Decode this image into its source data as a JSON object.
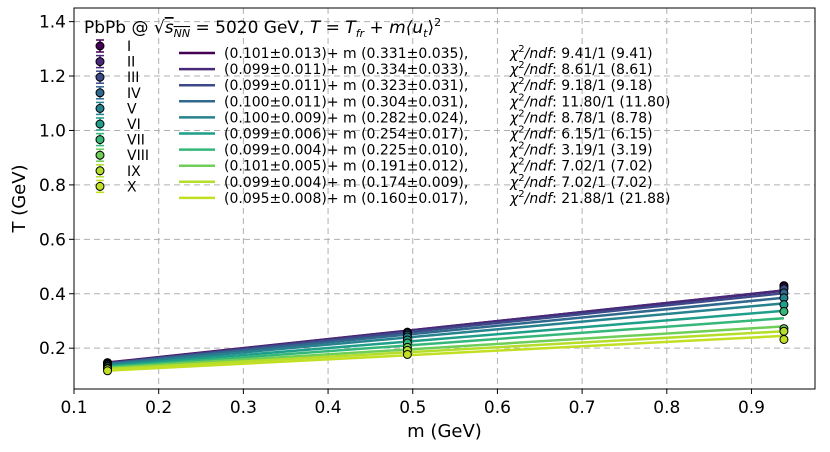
{
  "chart_data": {
    "type": "scatter",
    "title_parts": {
      "prefix": "PbPb @ ",
      "sqrt_s": "s",
      "sqrt_sub": "NN",
      "equals_energy": " = 5020 GeV, ",
      "T_eq": "T = T",
      "T_sub": "fr",
      "plus_m": " + m⟨u",
      "u_sub": "t",
      "close": "⟩",
      "sq": "2"
    },
    "xlabel": "m (GeV)",
    "ylabel": "T (GeV)",
    "xlim": [
      0.1,
      0.975
    ],
    "ylim": [
      0.05,
      1.45
    ],
    "xticks": [
      "0.1",
      "0.2",
      "0.3",
      "0.4",
      "0.5",
      "0.6",
      "0.7",
      "0.8",
      "0.9"
    ],
    "yticks": [
      "0.2",
      "0.4",
      "0.6",
      "0.8",
      "1.0",
      "1.2",
      "1.4"
    ],
    "grid": true,
    "legend_placement": "top-left",
    "x": [
      0.1396,
      0.4937,
      0.9383
    ],
    "fit_x_range": [
      0.1396,
      0.9383
    ],
    "series": [
      {
        "name": "I",
        "color": "#440154",
        "values": [
          0.147,
          0.259,
          0.43
        ],
        "fit_label": "(0.101±0.013)+ m (0.331±0.035),",
        "chi_text": ": 9.41/1 (9.41)"
      },
      {
        "name": "II",
        "color": "#482878",
        "values": [
          0.145,
          0.257,
          0.424
        ],
        "fit_label": "(0.099±0.011)+ m (0.334±0.033),",
        "chi_text": ": 8.61/1 (8.61)"
      },
      {
        "name": "III",
        "color": "#3e4989",
        "values": [
          0.144,
          0.253,
          0.418
        ],
        "fit_label": "(0.099±0.011)+ m (0.323±0.031),",
        "chi_text": ": 9.18/1 (9.18)"
      },
      {
        "name": "IV",
        "color": "#31688e",
        "values": [
          0.142,
          0.248,
          0.403
        ],
        "fit_label": "(0.100±0.011)+ m (0.304±0.031),",
        "chi_text": ": 11.80/1 (11.80)"
      },
      {
        "name": "V",
        "color": "#26828e",
        "values": [
          0.14,
          0.241,
          0.385
        ],
        "fit_label": "(0.100±0.009)+ m (0.282±0.024),",
        "chi_text": ": 8.78/1 (8.78)"
      },
      {
        "name": "VI",
        "color": "#1f9e89",
        "values": [
          0.136,
          0.23,
          0.36
        ],
        "fit_label": "(0.099±0.006)+ m (0.254±0.017),",
        "chi_text": ": 6.15/1 (6.15)"
      },
      {
        "name": "VII",
        "color": "#35b779",
        "values": [
          0.132,
          0.219,
          0.335
        ],
        "fit_label": "(0.099±0.004)+ m (0.225±0.010),",
        "chi_text": ": 3.19/1 (3.19)"
      },
      {
        "name": "VIII",
        "color": "#6ece58",
        "values": [
          0.127,
          0.203,
          0.272
        ],
        "fit_label": "(0.101±0.005)+ m (0.191±0.012),",
        "chi_text": ": 7.02/1 (7.02)"
      },
      {
        "name": "IX",
        "color": "#b5de2b",
        "values": [
          0.124,
          0.192,
          0.262
        ],
        "fit_label": "(0.099±0.004)+ m (0.174±0.009),",
        "chi_text": ": 7.02/1 (7.02)"
      },
      {
        "name": "X",
        "color": "#c2df23",
        "values": [
          0.117,
          0.177,
          0.232
        ],
        "fit_label": "(0.095±0.008)+ m (0.160±0.017),",
        "chi_text": ": 21.88/1 (21.88)"
      }
    ],
    "fits": [
      {
        "intercept": 0.101,
        "slope": 0.331
      },
      {
        "intercept": 0.099,
        "slope": 0.334
      },
      {
        "intercept": 0.099,
        "slope": 0.323
      },
      {
        "intercept": 0.1,
        "slope": 0.304
      },
      {
        "intercept": 0.1,
        "slope": 0.282
      },
      {
        "intercept": 0.099,
        "slope": 0.254
      },
      {
        "intercept": 0.099,
        "slope": 0.225
      },
      {
        "intercept": 0.101,
        "slope": 0.191
      },
      {
        "intercept": 0.099,
        "slope": 0.174
      },
      {
        "intercept": 0.095,
        "slope": 0.16
      }
    ],
    "chi_symbol": "χ",
    "chi_sup": "2",
    "chi_den": "/ndf"
  }
}
